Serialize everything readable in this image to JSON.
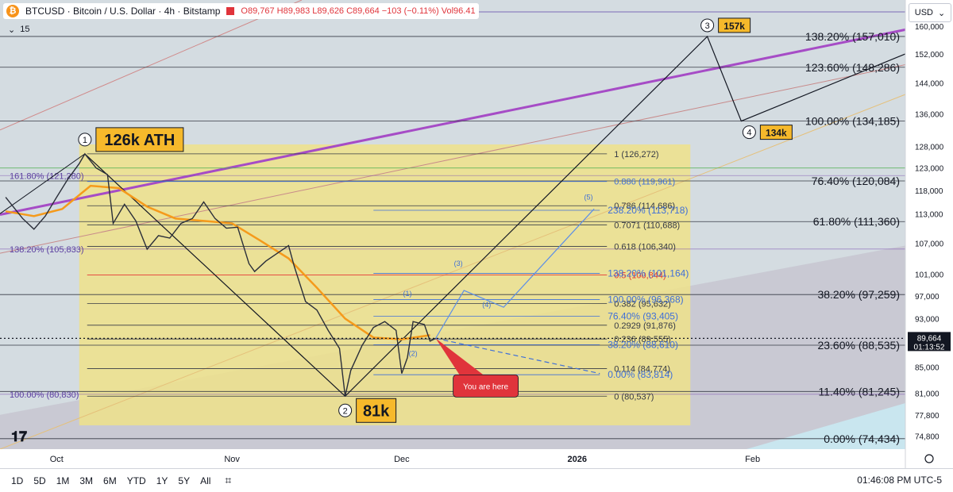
{
  "header": {
    "title": "BTCUSD · Bitcoin / U.S. Dollar · 4h · Bitstamp",
    "ohlc": "O89,767 H89,983 L89,626 C89,664 −103 (−0.11%) Vol96.41",
    "sub_value": "15",
    "currency": "USD"
  },
  "price_axis": {
    "ticks": [
      "160,000",
      "152,000",
      "144,000",
      "136,000",
      "128,000",
      "123,000",
      "118,000",
      "113,000",
      "107,000",
      "101,000",
      "97,000",
      "93,000",
      "85,000",
      "81,000",
      "77,800",
      "74,800"
    ],
    "current_price": "89,664",
    "countdown": "01:13:52"
  },
  "time_axis": {
    "ticks": [
      "Oct",
      "Nov",
      "Dec",
      "2026",
      "Feb"
    ]
  },
  "chart_data": {
    "type": "line",
    "title": "BTCUSD · Bitcoin / U.S. Dollar · 4h · Bitstamp",
    "y_scale": "log",
    "ylim": [
      73000,
      168000
    ],
    "x_range": [
      "2025-09-21",
      "2026-02-28"
    ],
    "series": [
      {
        "name": "",
        "points": [
          [
            "2025-09-22",
            116500
          ],
          [
            "2025-09-25",
            112000
          ],
          [
            "2025-09-27",
            109800
          ],
          [
            "2025-09-29",
            112500
          ],
          [
            "2025-10-01",
            116500
          ],
          [
            "2025-10-03",
            120500
          ],
          [
            "2025-10-05",
            124000
          ],
          [
            "2025-10-06",
            126272
          ],
          [
            "2025-10-08",
            123000
          ],
          [
            "2025-10-10",
            121500
          ],
          [
            "2025-10-11",
            111000
          ],
          [
            "2025-10-13",
            115000
          ],
          [
            "2025-10-15",
            111500
          ],
          [
            "2025-10-17",
            105800
          ],
          [
            "2025-10-19",
            108500
          ],
          [
            "2025-10-21",
            108000
          ],
          [
            "2025-10-23",
            111000
          ],
          [
            "2025-10-25",
            112000
          ],
          [
            "2025-10-27",
            115500
          ],
          [
            "2025-10-29",
            112000
          ],
          [
            "2025-10-31",
            110000
          ],
          [
            "2025-11-02",
            110200
          ],
          [
            "2025-11-04",
            103000
          ],
          [
            "2025-11-05",
            101500
          ],
          [
            "2025-11-07",
            103500
          ],
          [
            "2025-11-09",
            105000
          ],
          [
            "2025-11-11",
            106500
          ],
          [
            "2025-11-12",
            102500
          ],
          [
            "2025-11-14",
            96000
          ],
          [
            "2025-11-16",
            94500
          ],
          [
            "2025-11-18",
            91000
          ],
          [
            "2025-11-20",
            88000
          ],
          [
            "2025-11-21",
            80537
          ],
          [
            "2025-11-22",
            84500
          ],
          [
            "2025-11-24",
            88500
          ],
          [
            "2025-11-26",
            91500
          ],
          [
            "2025-11-28",
            92500
          ],
          [
            "2025-11-30",
            91000
          ],
          [
            "2025-12-01",
            84000
          ],
          [
            "2025-12-02",
            86500
          ],
          [
            "2025-12-03",
            92500
          ],
          [
            "2025-12-05",
            92000
          ],
          [
            "2025-12-06",
            89200
          ],
          [
            "2025-12-07",
            89664
          ]
        ]
      },
      {
        "name": "",
        "points": [
          [
            "2025-09-22",
            113500
          ],
          [
            "2025-09-27",
            112500
          ],
          [
            "2025-10-02",
            114000
          ],
          [
            "2025-10-07",
            119000
          ],
          [
            "2025-10-12",
            118500
          ],
          [
            "2025-10-17",
            114500
          ],
          [
            "2025-10-22",
            112000
          ],
          [
            "2025-10-27",
            111500
          ],
          [
            "2025-11-01",
            111000
          ],
          [
            "2025-11-06",
            107500
          ],
          [
            "2025-11-11",
            104000
          ],
          [
            "2025-11-16",
            98500
          ],
          [
            "2025-11-21",
            93000
          ],
          [
            "2025-11-26",
            89800
          ],
          [
            "2025-12-01",
            89500
          ],
          [
            "2025-12-06",
            90200
          ]
        ]
      }
    ],
    "fib_retracement": [
      {
        "label": "1 (126,272)",
        "value": 126272
      },
      {
        "label": "0.886 (119,961)",
        "value": 119961
      },
      {
        "label": "0.786 (114,686)",
        "value": 114686
      },
      {
        "label": "0.7071 (110,688)",
        "value": 110688
      },
      {
        "label": "0.618 (106,340)",
        "value": 106340
      },
      {
        "label": "0.5 (100,844)",
        "value": 100844
      },
      {
        "label": "0.382 (95,632)",
        "value": 95632
      },
      {
        "label": "0.2929 (91,876)",
        "value": 91876
      },
      {
        "label": "0.236 (89,555)",
        "value": 89555
      },
      {
        "label": "0.114 (84,774)",
        "value": 84774
      },
      {
        "label": "0 (80,537)",
        "value": 80537
      }
    ],
    "fib_extension_inner": [
      {
        "label": "238.20% (113,718)",
        "value": 113718
      },
      {
        "label": "138.20% (101,164)",
        "value": 101164
      },
      {
        "label": "100.00% (96,368)",
        "value": 96368
      },
      {
        "label": "76.40% (93,405)",
        "value": 93405
      },
      {
        "label": "38.20% (88,610)",
        "value": 88610
      },
      {
        "label": "0.00% (83,814)",
        "value": 83814
      }
    ],
    "fib_extension_outer": [
      {
        "label": "138.20% (157,010)",
        "value": 157010
      },
      {
        "label": "123.60% (148,286)",
        "value": 148286
      },
      {
        "label": "100.00% (134,185)",
        "value": 134185
      },
      {
        "label": "76.40% (120,084)",
        "value": 120084
      },
      {
        "label": "61.80% (111,360)",
        "value": 111360
      },
      {
        "label": "38.20% (97,259)",
        "value": 97259
      },
      {
        "label": "23.60% (88,535)",
        "value": 88535
      },
      {
        "label": "11.40% (81,245)",
        "value": 81245
      },
      {
        "label": "0.00% (74,434)",
        "value": 74434
      }
    ],
    "fib_left": [
      {
        "label": "161.80% (121,280)",
        "value": 121280
      },
      {
        "label": "138.20% (105,833)",
        "value": 105833
      },
      {
        "label": "100.00% (80,830)",
        "value": 80830
      }
    ],
    "wave_points": [
      {
        "label": "1",
        "date": "2025-10-06",
        "value": 126272,
        "callout": "126k ATH"
      },
      {
        "label": "2",
        "date": "2025-11-21",
        "value": 80537,
        "callout": "81k"
      },
      {
        "label": "3",
        "date": "2026-01-24",
        "value": 157010,
        "callout": "157k"
      },
      {
        "label": "4",
        "date": "2026-01-30",
        "value": 134185,
        "callout": "134k"
      }
    ],
    "sub_wave_labels": [
      "(1)",
      "(2)",
      "(3)",
      "(4)",
      "(5)"
    ],
    "annotations": [
      "You are here"
    ]
  },
  "bottom_bar": {
    "timeframes": [
      "1D",
      "5D",
      "1M",
      "3M",
      "6M",
      "YTD",
      "1Y",
      "5Y",
      "All"
    ],
    "clock": "01:46:08 PM UTC-5"
  }
}
